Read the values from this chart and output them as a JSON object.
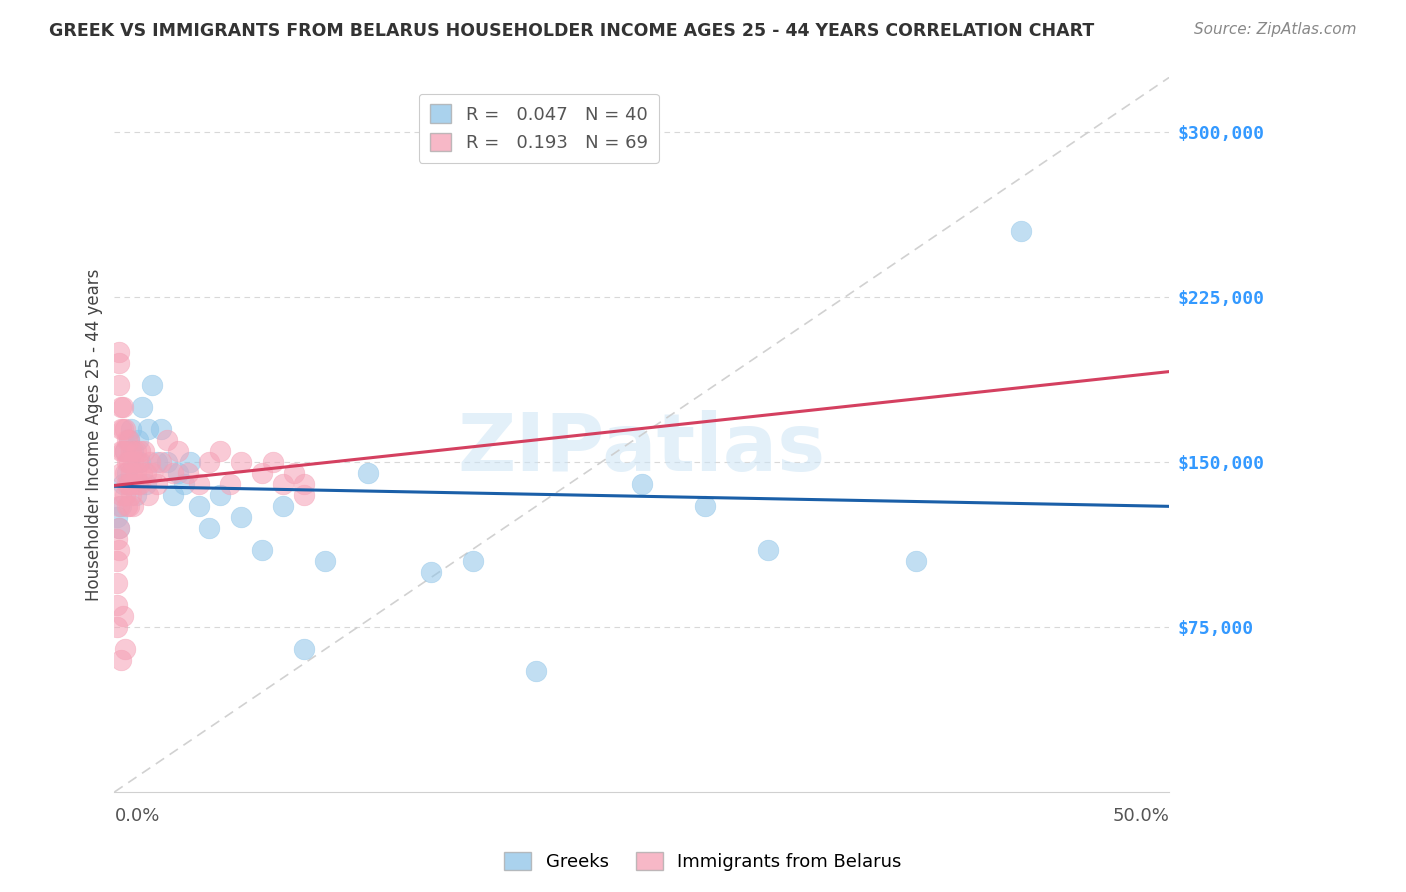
{
  "title": "GREEK VS IMMIGRANTS FROM BELARUS HOUSEHOLDER INCOME AGES 25 - 44 YEARS CORRELATION CHART",
  "source": "Source: ZipAtlas.com",
  "ylabel": "Householder Income Ages 25 - 44 years",
  "ytick_labels": [
    "$75,000",
    "$150,000",
    "$225,000",
    "$300,000"
  ],
  "ytick_values": [
    75000,
    150000,
    225000,
    300000
  ],
  "legend_label_greek": "Greeks",
  "legend_label_belarus": "Immigrants from Belarus",
  "color_greek": "#8ec4e8",
  "color_belarus": "#f5a0b5",
  "color_greek_line": "#1a5fa8",
  "color_belarus_line": "#d44060",
  "color_diagonal": "#d0d0d0",
  "watermark": "ZIPatlas",
  "xmin": 0.0,
  "xmax": 0.5,
  "ymin": 0,
  "ymax": 325000,
  "greek_x": [
    0.001,
    0.002,
    0.003,
    0.004,
    0.005,
    0.006,
    0.007,
    0.008,
    0.009,
    0.01,
    0.011,
    0.012,
    0.013,
    0.015,
    0.016,
    0.018,
    0.02,
    0.022,
    0.025,
    0.028,
    0.03,
    0.033,
    0.036,
    0.04,
    0.045,
    0.05,
    0.06,
    0.07,
    0.08,
    0.09,
    0.1,
    0.12,
    0.15,
    0.17,
    0.2,
    0.25,
    0.28,
    0.31,
    0.38,
    0.43
  ],
  "greek_y": [
    125000,
    120000,
    130000,
    140000,
    155000,
    145000,
    160000,
    165000,
    155000,
    135000,
    160000,
    150000,
    175000,
    140000,
    165000,
    185000,
    150000,
    165000,
    150000,
    135000,
    145000,
    140000,
    150000,
    130000,
    120000,
    135000,
    125000,
    110000,
    130000,
    65000,
    105000,
    145000,
    100000,
    105000,
    55000,
    140000,
    130000,
    110000,
    105000,
    255000
  ],
  "belarus_x": [
    0.001,
    0.001,
    0.001,
    0.001,
    0.001,
    0.002,
    0.002,
    0.002,
    0.002,
    0.002,
    0.002,
    0.003,
    0.003,
    0.003,
    0.003,
    0.003,
    0.003,
    0.004,
    0.004,
    0.004,
    0.004,
    0.005,
    0.005,
    0.005,
    0.005,
    0.005,
    0.006,
    0.006,
    0.006,
    0.006,
    0.007,
    0.007,
    0.007,
    0.007,
    0.008,
    0.008,
    0.008,
    0.009,
    0.009,
    0.009,
    0.01,
    0.01,
    0.011,
    0.011,
    0.012,
    0.012,
    0.013,
    0.014,
    0.015,
    0.016,
    0.017,
    0.018,
    0.02,
    0.022,
    0.025,
    0.028,
    0.03,
    0.035,
    0.04,
    0.045,
    0.05,
    0.055,
    0.06,
    0.07,
    0.075,
    0.08,
    0.085,
    0.09,
    0.09
  ],
  "belarus_y": [
    115000,
    105000,
    95000,
    85000,
    75000,
    200000,
    195000,
    185000,
    130000,
    120000,
    110000,
    175000,
    165000,
    155000,
    145000,
    135000,
    60000,
    175000,
    165000,
    155000,
    80000,
    165000,
    155000,
    145000,
    135000,
    65000,
    160000,
    150000,
    140000,
    130000,
    160000,
    150000,
    140000,
    130000,
    155000,
    145000,
    135000,
    150000,
    140000,
    130000,
    155000,
    145000,
    150000,
    140000,
    155000,
    140000,
    145000,
    155000,
    145000,
    135000,
    150000,
    145000,
    140000,
    150000,
    160000,
    145000,
    155000,
    145000,
    140000,
    150000,
    155000,
    140000,
    150000,
    145000,
    150000,
    140000,
    145000,
    140000,
    135000
  ]
}
